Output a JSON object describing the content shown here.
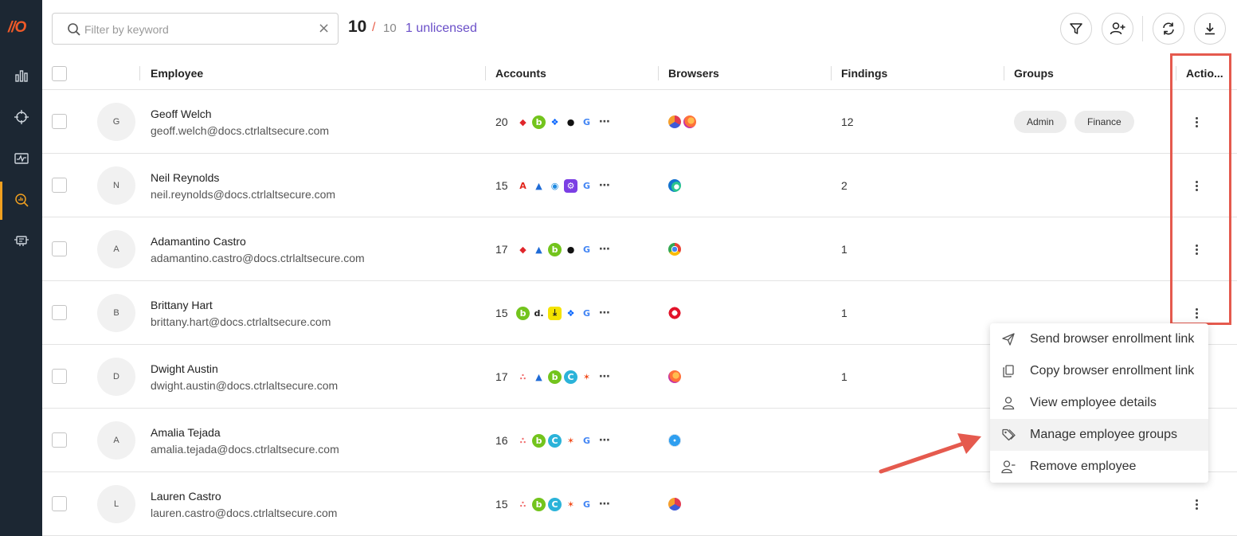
{
  "sidebar": {
    "logo": "//O",
    "items": [
      "chart-icon",
      "crosshair-icon",
      "activity-icon",
      "search-analytics-icon",
      "device-icon"
    ],
    "active_index": 3
  },
  "toolbar": {
    "search_placeholder": "Filter by keyword",
    "count": "10",
    "slash": "/",
    "total": "10",
    "unlicensed": "1 unlicensed",
    "buttons": [
      "filter-icon",
      "add-user-icon",
      "refresh-icon",
      "download-icon"
    ]
  },
  "table": {
    "headers": {
      "employee": "Employee",
      "accounts": "Accounts",
      "browsers": "Browsers",
      "findings": "Findings",
      "groups": "Groups",
      "actions": "Actio..."
    },
    "rows": [
      {
        "initial": "G",
        "name": "Geoff Welch",
        "email": "geoff.welch@docs.ctrlaltsecure.com",
        "accounts": "20",
        "account_icons": [
          "brave",
          "bamboo",
          "dropbox",
          "github",
          "google"
        ],
        "browsers": [
          "arc",
          "firefox"
        ],
        "findings": "12",
        "groups": [
          "Admin",
          "Finance"
        ]
      },
      {
        "initial": "N",
        "name": "Neil Reynolds",
        "email": "neil.reynolds@docs.ctrlaltsecure.com",
        "accounts": "15",
        "account_icons": [
          "adobe",
          "atlassian",
          "dot-blue",
          "purple-gear",
          "google"
        ],
        "browsers": [
          "edge"
        ],
        "findings": "2",
        "groups": []
      },
      {
        "initial": "A",
        "name": "Adamantino Castro",
        "email": "adamantino.castro@docs.ctrlaltsecure.com",
        "accounts": "17",
        "account_icons": [
          "brave",
          "atlassian",
          "bamboo",
          "github",
          "google"
        ],
        "browsers": [
          "chrome"
        ],
        "findings": "1",
        "groups": []
      },
      {
        "initial": "B",
        "name": "Brittany Hart",
        "email": "brittany.hart@docs.ctrlaltsecure.com",
        "accounts": "15",
        "account_icons": [
          "bamboo",
          "d-dot",
          "download-yellow",
          "dropbox",
          "google"
        ],
        "browsers": [
          "opera"
        ],
        "findings": "1",
        "groups": []
      },
      {
        "initial": "D",
        "name": "Dwight Austin",
        "email": "dwight.austin@docs.ctrlaltsecure.com",
        "accounts": "17",
        "account_icons": [
          "asana",
          "atlassian",
          "bamboo",
          "canva",
          "figma"
        ],
        "browsers": [
          "firefox"
        ],
        "findings": "1",
        "groups": []
      },
      {
        "initial": "A",
        "name": "Amalia Tejada",
        "email": "amalia.tejada@docs.ctrlaltsecure.com",
        "accounts": "16",
        "account_icons": [
          "asana",
          "bamboo",
          "canva",
          "figma",
          "google"
        ],
        "browsers": [
          "safari"
        ],
        "findings": "",
        "groups": []
      },
      {
        "initial": "L",
        "name": "Lauren Castro",
        "email": "lauren.castro@docs.ctrlaltsecure.com",
        "accounts": "15",
        "account_icons": [
          "asana",
          "bamboo",
          "canva",
          "figma",
          "google"
        ],
        "browsers": [
          "arc"
        ],
        "findings": "",
        "groups": []
      }
    ]
  },
  "menu": {
    "items": [
      {
        "label": "Send browser enrollment link",
        "icon": "send-icon"
      },
      {
        "label": "Copy browser enrollment link",
        "icon": "copy-icon"
      },
      {
        "label": "View employee details",
        "icon": "user-icon"
      },
      {
        "label": "Manage employee groups",
        "icon": "tag-icon"
      },
      {
        "label": "Remove employee",
        "icon": "user-minus-icon"
      }
    ],
    "active_index": 3
  },
  "colors": {
    "sidebar_bg": "#1c2733",
    "accent": "#f05a28",
    "unlicensed": "#6a4fc8",
    "highlight": "#e55a4e"
  }
}
